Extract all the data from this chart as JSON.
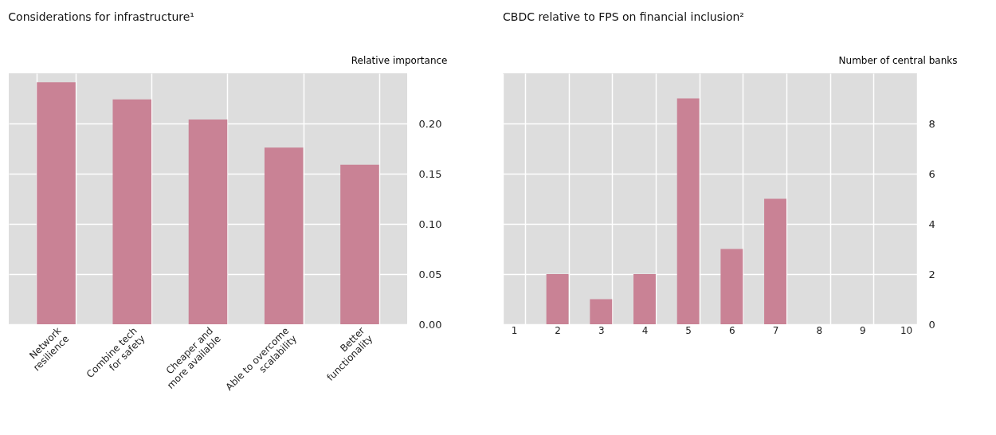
{
  "chart_data": [
    {
      "type": "bar",
      "title": "Considerations for infrastructure¹",
      "ylabel": "Relative importance",
      "categories": [
        "Network\nresilience",
        "Combine tech\nfor safety",
        "Cheaper and\nmore available",
        "Able to overcome\nscalability",
        "Better\nfunctionality"
      ],
      "values": [
        0.241,
        0.224,
        0.204,
        0.176,
        0.159
      ],
      "color": "#c98295",
      "ylim": [
        0,
        0.25
      ],
      "yticks": [
        {
          "value": 0,
          "label": "0.00"
        },
        0.05,
        {
          "value": 0.1,
          "label": "0.10"
        },
        0.15,
        {
          "value": 0.2,
          "label": "0.20"
        }
      ],
      "grid": true
    },
    {
      "type": "bar",
      "title": "CBDC relative to FPS on financial inclusion²",
      "ylabel": "Number of central banks",
      "categories": [
        "1",
        "2",
        "3",
        "4",
        "5",
        "6",
        "7",
        "8",
        "9",
        "10"
      ],
      "values": [
        0,
        2,
        1,
        2,
        9,
        3,
        5,
        0,
        0,
        0
      ],
      "color": "#c98295",
      "ylim": [
        0,
        10
      ],
      "yticks": [
        0,
        2,
        4,
        6,
        8
      ],
      "grid": true
    }
  ]
}
